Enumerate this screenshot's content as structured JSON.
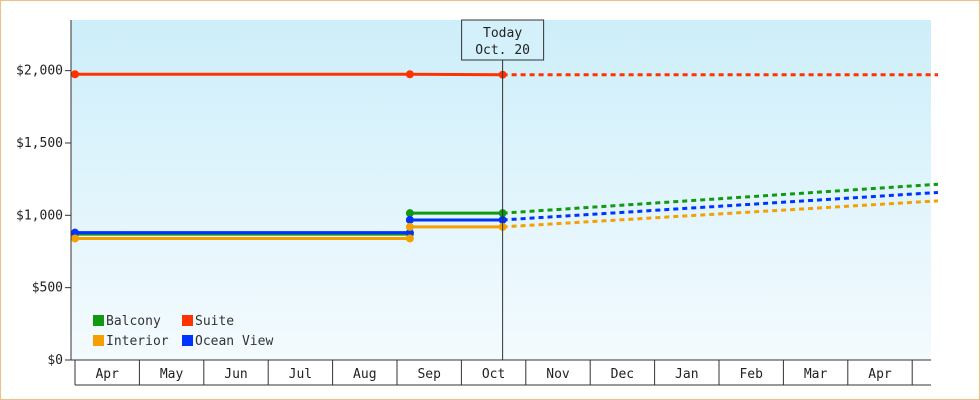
{
  "chart_data": {
    "type": "line",
    "title": "",
    "xlabel": "",
    "ylabel": "",
    "ylim": [
      0,
      2350
    ],
    "yticks": [
      {
        "value": 0,
        "label": "$0"
      },
      {
        "value": 500,
        "label": "$500"
      },
      {
        "value": 1000,
        "label": "$1,000"
      },
      {
        "value": 1500,
        "label": "$1,500"
      },
      {
        "value": 2000,
        "label": "$2,000"
      }
    ],
    "months": [
      "Apr",
      "May",
      "Jun",
      "Jul",
      "Aug",
      "Sep",
      "Oct",
      "Nov",
      "Dec",
      "Jan",
      "Feb",
      "Mar",
      "Apr"
    ],
    "x_range": [
      0,
      13.4
    ],
    "today": {
      "line1": "Today",
      "line2": "Oct. 20",
      "x": 6.64
    },
    "series": [
      {
        "name": "Suite",
        "color": "#ff3300",
        "points": [
          [
            0,
            1975
          ],
          [
            5.2,
            1975
          ],
          [
            6.64,
            1972
          ]
        ],
        "markers": [
          [
            0,
            1975
          ],
          [
            5.2,
            1975
          ],
          [
            6.64,
            1972
          ]
        ],
        "projection": [
          [
            6.64,
            1972
          ],
          [
            13.4,
            1972
          ]
        ]
      },
      {
        "name": "Balcony",
        "color": "#119911",
        "points": [
          [
            0,
            870
          ],
          [
            5.2,
            870
          ],
          [
            5.2,
            1015
          ],
          [
            6.64,
            1015
          ]
        ],
        "markers": [
          [
            0,
            870
          ],
          [
            5.2,
            870
          ],
          [
            5.2,
            1015
          ],
          [
            6.64,
            1015
          ]
        ],
        "projection": [
          [
            6.64,
            1015
          ],
          [
            13.4,
            1215
          ]
        ]
      },
      {
        "name": "Ocean View",
        "color": "#0033ff",
        "points": [
          [
            0,
            880
          ],
          [
            5.2,
            880
          ],
          [
            5.2,
            968
          ],
          [
            6.64,
            968
          ]
        ],
        "markers": [
          [
            0,
            880
          ],
          [
            5.2,
            880
          ],
          [
            5.2,
            968
          ],
          [
            6.64,
            968
          ]
        ],
        "projection": [
          [
            6.64,
            968
          ],
          [
            13.4,
            1158
          ]
        ]
      },
      {
        "name": "Interior",
        "color": "#f5a000",
        "points": [
          [
            0,
            840
          ],
          [
            5.2,
            840
          ],
          [
            5.2,
            920
          ],
          [
            6.64,
            920
          ]
        ],
        "markers": [
          [
            0,
            840
          ],
          [
            5.2,
            840
          ],
          [
            5.2,
            920
          ],
          [
            6.64,
            920
          ]
        ],
        "projection": [
          [
            6.64,
            920
          ],
          [
            13.4,
            1100
          ]
        ]
      }
    ],
    "legend": {
      "position": "bottom-left",
      "items": [
        {
          "label": "Balcony",
          "color": "#119911"
        },
        {
          "label": "Suite",
          "color": "#ff3300"
        },
        {
          "label": "Interior",
          "color": "#f5a000"
        },
        {
          "label": "Ocean View",
          "color": "#0033ff"
        }
      ]
    }
  }
}
